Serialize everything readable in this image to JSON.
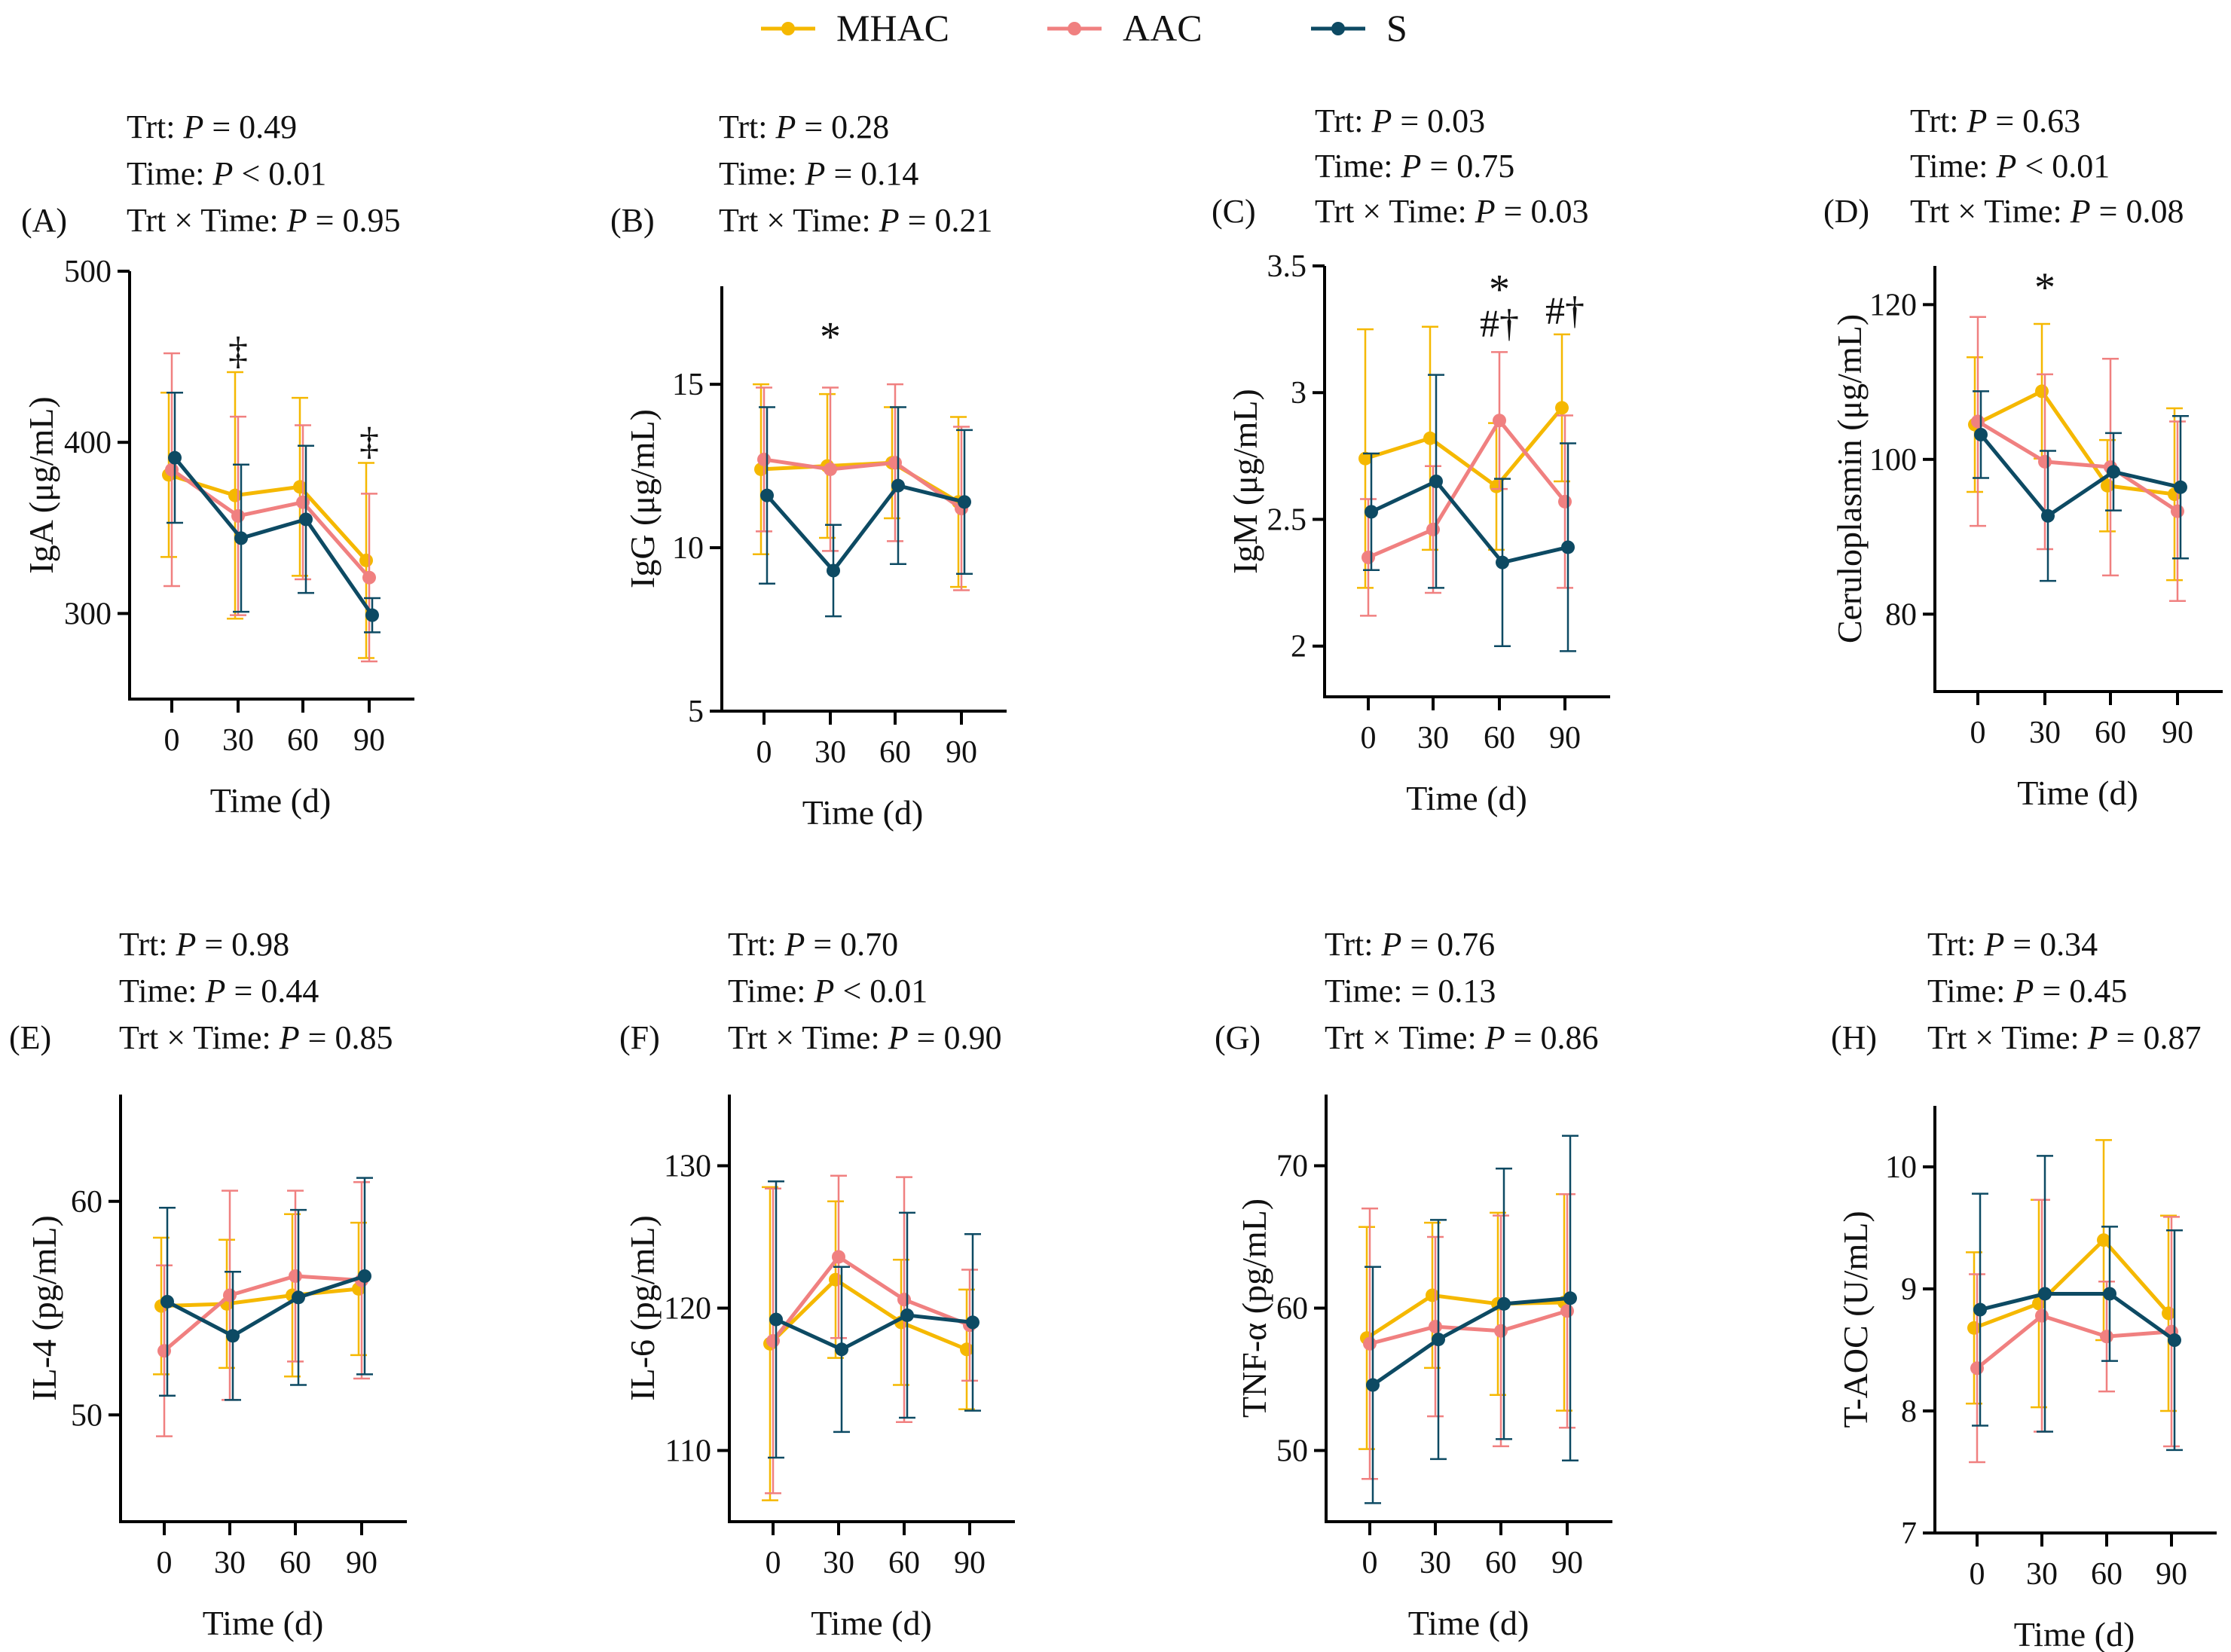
{
  "legend": [
    {
      "name": "MHAC",
      "color": "#F5B800"
    },
    {
      "name": "AAC",
      "color": "#F08080"
    },
    {
      "name": "S",
      "color": "#0D4A63"
    }
  ],
  "chart_data": [
    {
      "type": "line",
      "panel_label": "(A)",
      "stats": [
        {
          "label": "Trt: ",
          "p": "P",
          "rest": " = 0.49"
        },
        {
          "label": "Time: ",
          "p": "P",
          "rest": " < 0.01"
        },
        {
          "label": "Trt × Time: ",
          "p": "P",
          "rest": " = 0.95"
        }
      ],
      "x": [
        0,
        30,
        60,
        90
      ],
      "xlabel": "Time (d)",
      "ylabel": "IgA (μg/mL)",
      "ylim": [
        250,
        500
      ],
      "yticks": [
        300,
        400,
        500
      ],
      "series": [
        {
          "name": "MHAC",
          "values": [
            381,
            369,
            374,
            331
          ],
          "err": [
            48,
            72,
            52,
            57
          ]
        },
        {
          "name": "AAC",
          "values": [
            384,
            357,
            365,
            321
          ],
          "err": [
            68,
            58,
            45,
            49
          ]
        },
        {
          "name": "S",
          "values": [
            391,
            344,
            355,
            299
          ],
          "err": [
            38,
            43,
            43,
            10
          ]
        }
      ],
      "annotations": [
        {
          "x": 30,
          "text": "‡",
          "y": 453
        },
        {
          "x": 90,
          "text": "‡",
          "y": 400
        }
      ]
    },
    {
      "type": "line",
      "panel_label": "(B)",
      "stats": [
        {
          "label": "Trt: ",
          "p": "P",
          "rest": " = 0.28"
        },
        {
          "label": "Time: ",
          "p": "P",
          "rest": " = 0.14"
        },
        {
          "label": "Trt × Time: ",
          "p": "P",
          "rest": " = 0.21"
        }
      ],
      "x": [
        0,
        30,
        60,
        90
      ],
      "xlabel": "Time (d)",
      "ylabel": "IgG (μg/mL)",
      "ylim": [
        5,
        18
      ],
      "yticks": [
        5,
        10,
        15
      ],
      "series": [
        {
          "name": "MHAC",
          "values": [
            12.4,
            12.5,
            12.6,
            11.4
          ],
          "err": [
            2.6,
            2.2,
            1.7,
            2.6
          ]
        },
        {
          "name": "AAC",
          "values": [
            12.7,
            12.4,
            12.6,
            11.2
          ],
          "err": [
            2.2,
            2.5,
            2.4,
            2.5
          ]
        },
        {
          "name": "S",
          "values": [
            11.6,
            9.3,
            11.9,
            11.4
          ],
          "err": [
            2.7,
            1.4,
            2.4,
            2.2
          ]
        }
      ],
      "annotations": [
        {
          "x": 30,
          "text": "*",
          "y": 16.4
        }
      ]
    },
    {
      "type": "line",
      "panel_label": "(C)",
      "stats": [
        {
          "label": "Trt: ",
          "p": "P",
          "rest": " = 0.03"
        },
        {
          "label": "Time: ",
          "p": "P",
          "rest": " = 0.75"
        },
        {
          "label": "Trt × Time: ",
          "p": "P",
          "rest": " = 0.03"
        }
      ],
      "x": [
        0,
        30,
        60,
        90
      ],
      "xlabel": "Time (d)",
      "ylabel": "IgM (μg/mL)",
      "ylim": [
        1.8,
        3.5
      ],
      "yticks": [
        2.0,
        2.5,
        3.0,
        3.5
      ],
      "series": [
        {
          "name": "MHAC",
          "values": [
            2.74,
            2.82,
            2.63,
            2.94
          ],
          "err": [
            0.51,
            0.44,
            0.25,
            0.29
          ]
        },
        {
          "name": "AAC",
          "values": [
            2.35,
            2.46,
            2.89,
            2.57
          ],
          "err": [
            0.23,
            0.25,
            0.27,
            0.34
          ]
        },
        {
          "name": "S",
          "values": [
            2.53,
            2.65,
            2.33,
            2.39
          ],
          "err": [
            0.23,
            0.42,
            0.33,
            0.41
          ]
        }
      ],
      "annotations": [
        {
          "x": 60,
          "text": "*",
          "y": 3.4
        },
        {
          "x": 60,
          "text": "#†",
          "y": 3.27
        },
        {
          "x": 90,
          "text": "#†",
          "y": 3.32
        }
      ]
    },
    {
      "type": "line",
      "panel_label": "(D)",
      "stats": [
        {
          "label": "Trt: ",
          "p": "P",
          "rest": " = 0.63"
        },
        {
          "label": "Time: ",
          "p": "P",
          "rest": " < 0.01"
        },
        {
          "label": "Trt × Time: ",
          "p": "P",
          "rest": " = 0.08"
        }
      ],
      "x": [
        0,
        30,
        60,
        90
      ],
      "xlabel": "Time (d)",
      "ylabel": "Ceruloplasmin (μg/mL)",
      "ylim": [
        70,
        125
      ],
      "yticks": [
        80,
        100,
        120
      ],
      "series": [
        {
          "name": "MHAC",
          "values": [
            104.5,
            108.8,
            96.6,
            95.5
          ],
          "err": [
            8.7,
            8.7,
            5.9,
            11.1
          ]
        },
        {
          "name": "AAC",
          "values": [
            104.9,
            99.7,
            99.0,
            93.3
          ],
          "err": [
            13.5,
            11.3,
            14.0,
            11.6
          ]
        },
        {
          "name": "S",
          "values": [
            103.2,
            92.7,
            98.4,
            96.4
          ],
          "err": [
            5.6,
            8.4,
            5.0,
            9.2
          ]
        }
      ],
      "annotations": [
        {
          "x": 30,
          "text": "*",
          "y": 122
        }
      ]
    },
    {
      "type": "line",
      "panel_label": "(E)",
      "stats": [
        {
          "label": "Trt: ",
          "p": "P",
          "rest": " = 0.98"
        },
        {
          "label": "Time: ",
          "p": "P",
          "rest": " = 0.44"
        },
        {
          "label": "Trt × Time: ",
          "p": "P",
          "rest": " = 0.85"
        }
      ],
      "x": [
        0,
        30,
        60,
        90
      ],
      "xlabel": "Time (d)",
      "ylabel": "IL-4 (pg/mL)",
      "ylim": [
        45,
        65
      ],
      "yticks": [
        50,
        60
      ],
      "series": [
        {
          "name": "MHAC",
          "values": [
            55.1,
            55.2,
            55.6,
            55.9
          ],
          "err": [
            3.2,
            3.0,
            3.8,
            3.1
          ]
        },
        {
          "name": "AAC",
          "values": [
            53.0,
            55.6,
            56.5,
            56.3
          ],
          "err": [
            4.0,
            4.9,
            4.0,
            4.6
          ]
        },
        {
          "name": "S",
          "values": [
            55.3,
            53.7,
            55.5,
            56.5
          ],
          "err": [
            4.4,
            3.0,
            4.1,
            4.6
          ]
        }
      ],
      "annotations": []
    },
    {
      "type": "line",
      "panel_label": "(F)",
      "stats": [
        {
          "label": "Trt: ",
          "p": "P",
          "rest": " = 0.70"
        },
        {
          "label": "Time: ",
          "p": "P",
          "rest": " < 0.01"
        },
        {
          "label": "Trt × Time: ",
          "p": "P",
          "rest": " = 0.90"
        }
      ],
      "x": [
        0,
        30,
        60,
        90
      ],
      "xlabel": "Time (d)",
      "ylabel": "IL-6 (pg/mL)",
      "ylim": [
        105,
        135
      ],
      "yticks": [
        110,
        120,
        130
      ],
      "series": [
        {
          "name": "MHAC",
          "values": [
            117.5,
            122.0,
            119.0,
            117.1
          ],
          "err": [
            11.0,
            5.5,
            4.4,
            4.2
          ]
        },
        {
          "name": "AAC",
          "values": [
            117.7,
            123.6,
            120.6,
            118.8
          ],
          "err": [
            10.7,
            5.7,
            8.6,
            3.9
          ]
        },
        {
          "name": "S",
          "values": [
            119.2,
            117.1,
            119.5,
            119.0
          ],
          "err": [
            9.7,
            5.8,
            7.2,
            6.2
          ]
        }
      ],
      "annotations": []
    },
    {
      "type": "line",
      "panel_label": "(G)",
      "stats": [
        {
          "label": "Trt: ",
          "p": "P",
          "rest": " = 0.76"
        },
        {
          "label": "Time: = 0.13",
          "p": "",
          "rest": ""
        },
        {
          "label": "Trt × Time: ",
          "p": "P",
          "rest": " = 0.86"
        }
      ],
      "x": [
        0,
        30,
        60,
        90
      ],
      "xlabel": "Time (d)",
      "ylabel": "TNF-α (pg/mL)",
      "ylim": [
        45,
        75
      ],
      "yticks": [
        50,
        60,
        70
      ],
      "series": [
        {
          "name": "MHAC",
          "values": [
            57.9,
            60.9,
            60.3,
            60.4
          ],
          "err": [
            7.8,
            5.1,
            6.4,
            7.6
          ]
        },
        {
          "name": "AAC",
          "values": [
            57.5,
            58.7,
            58.4,
            59.8
          ],
          "err": [
            9.5,
            6.3,
            8.1,
            8.2
          ]
        },
        {
          "name": "S",
          "values": [
            54.6,
            57.8,
            60.3,
            60.7
          ],
          "err": [
            8.3,
            8.4,
            9.5,
            11.4
          ]
        }
      ],
      "annotations": []
    },
    {
      "type": "line",
      "panel_label": "(H)",
      "stats": [
        {
          "label": "Trt: ",
          "p": "P",
          "rest": " = 0.34"
        },
        {
          "label": "Time: ",
          "p": "P",
          "rest": " = 0.45"
        },
        {
          "label": "Trt × Time: ",
          "p": "P",
          "rest": " = 0.87"
        }
      ],
      "x": [
        0,
        30,
        60,
        90
      ],
      "xlabel": "Time (d)",
      "ylabel": "T-AOC (U/mL)",
      "ylim": [
        7,
        10.5
      ],
      "yticks": [
        7,
        8,
        9,
        10
      ],
      "series": [
        {
          "name": "MHAC",
          "values": [
            8.68,
            8.88,
            9.4,
            8.8
          ],
          "err": [
            0.62,
            0.85,
            0.82,
            0.8
          ]
        },
        {
          "name": "AAC",
          "values": [
            8.35,
            8.78,
            8.61,
            8.65
          ],
          "err": [
            0.77,
            0.95,
            0.45,
            0.94
          ]
        },
        {
          "name": "S",
          "values": [
            8.83,
            8.96,
            8.96,
            8.58
          ],
          "err": [
            0.95,
            1.13,
            0.55,
            0.9
          ]
        }
      ],
      "annotations": []
    }
  ]
}
